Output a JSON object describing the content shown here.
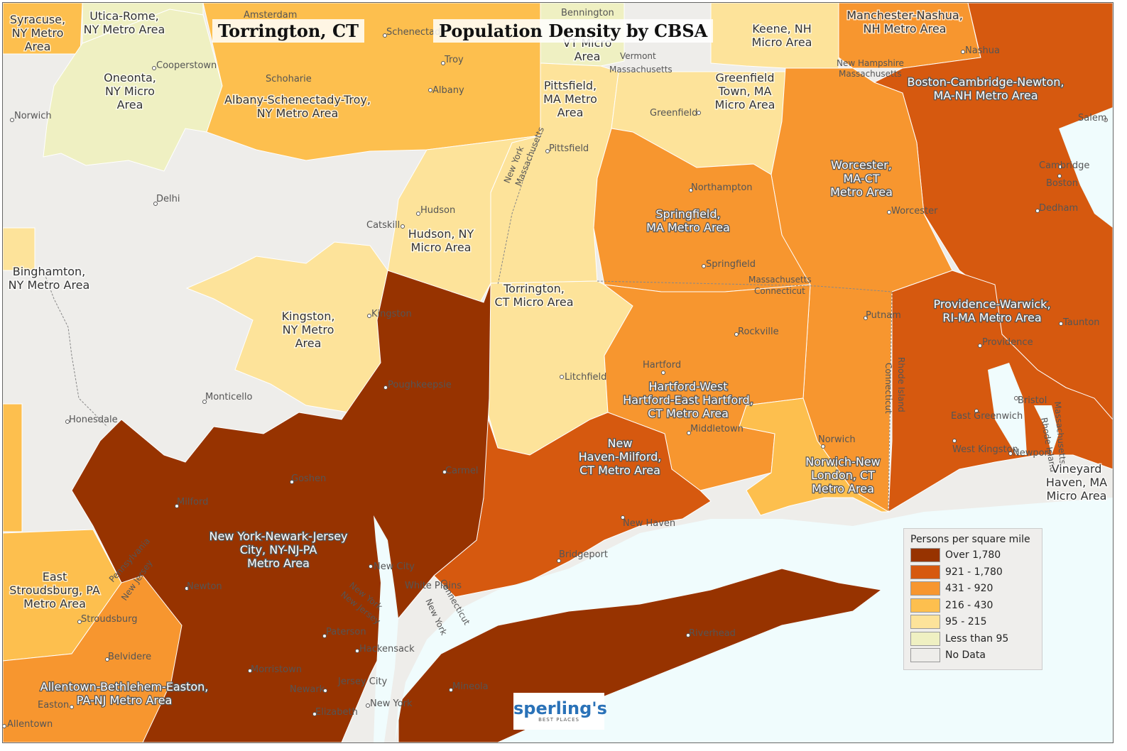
{
  "titles": {
    "place": "Torrington, CT",
    "map": "Population Density by CBSA"
  },
  "legend": {
    "title": "Persons per square mile",
    "items": [
      {
        "label": "Over 1,780",
        "color": "#973300"
      },
      {
        "label": "921 - 1,780",
        "color": "#d6590f"
      },
      {
        "label": "431 - 920",
        "color": "#f7962f"
      },
      {
        "label": "216 - 430",
        "color": "#fdbf4e"
      },
      {
        "label": "95 - 215",
        "color": "#fde39a"
      },
      {
        "label": "Less than 95",
        "color": "#eff0c2"
      },
      {
        "label": "No Data",
        "color": "#eeedea"
      }
    ]
  },
  "logo": {
    "brand": "sperling's",
    "tagline": "BEST PLACES"
  },
  "colors": {
    "water": "#f0fcfd",
    "no_data": "#eeedea"
  },
  "regions": {
    "syracuse": "Syracuse, NY Metro Area",
    "utica": "Utica-Rome, NY Metro Area",
    "oneonta": "Oneonta, NY Micro Area",
    "albany": "Albany-Schenectady-Troy, NY Metro Area",
    "bennington": "VT Micro Area",
    "keene": "Keene, NH Micro Area",
    "manchester": "Manchester-Nashua, NH Metro Area",
    "pittsfield": "Pittsfield, MA Metro Area",
    "greenfield": "Greenfield Town, MA Micro Area",
    "boston": "Boston-Cambridge-Newton, MA-NH Metro Area",
    "worcester": "Worcester, MA-CT Metro Area",
    "springfield": "Springfield, MA Metro Area",
    "hudson": "Hudson, NY Micro Area",
    "binghamton": "Binghamton, NY Metro Area",
    "kingston": "Kingston, NY Metro Area",
    "torrington": "Torrington, CT Micro Area",
    "providence": "Providence-Warwick, RI-MA Metro Area",
    "hartford": "Hartford-West Hartford-East Hartford, CT Metro Area",
    "newhaven": "New Haven-Milford, CT Metro Area",
    "norwich": "Norwich-New London, CT Metro Area",
    "vineyard": "Vineyard Haven, MA Micro Area",
    "newyork": "New York-Newark-Jersey City, NY-NJ-PA Metro Area",
    "stroudsburg": "East Stroudsburg, PA Metro Area",
    "allentown": "Allentown-Bethlehem-Easton, PA-NJ Metro Area"
  },
  "cities": [
    "Amsterdam",
    "Schenectady",
    "Troy",
    "Albany",
    "Schoharie",
    "Cooperstown",
    "Norwich",
    "Delhi",
    "Catskill",
    "Hudson",
    "Kingston",
    "Poughkeepsie",
    "Monticello",
    "Honesdale",
    "Goshen",
    "Milford",
    "Carmel",
    "Newton",
    "White Plains",
    "New City",
    "Paterson",
    "Hackensack",
    "Morristown",
    "Newark",
    "Jersey City",
    "Elizabeth",
    "New York",
    "Mineola",
    "Riverhead",
    "Stroudsburg",
    "Belvidere",
    "Easton",
    "Allentown",
    "Bennington",
    "Pittsfield",
    "Greenfield",
    "Northampton",
    "Springfield",
    "Worcester",
    "Nashua",
    "Salem",
    "Cambridge",
    "Boston",
    "Dedham",
    "Putnam",
    "Rockville",
    "Hartford",
    "Middletown",
    "Litchfield",
    "Norwich",
    "New Haven",
    "Bridgeport",
    "Providence",
    "Taunton",
    "East Greenwich",
    "West Kingston",
    "Bristol",
    "Newport"
  ],
  "state_lines": [
    "Vermont",
    "Massachusetts",
    "New Hampshire",
    "Massachusetts",
    "New York",
    "Massachusetts",
    "Massachusetts",
    "Connecticut",
    "Connecticut",
    "Rhode Island",
    "Massachusetts",
    "Rhode Island",
    "Pennsylvania",
    "New Jersey",
    "New York",
    "New Jersey",
    "Connecticut",
    "New York"
  ]
}
